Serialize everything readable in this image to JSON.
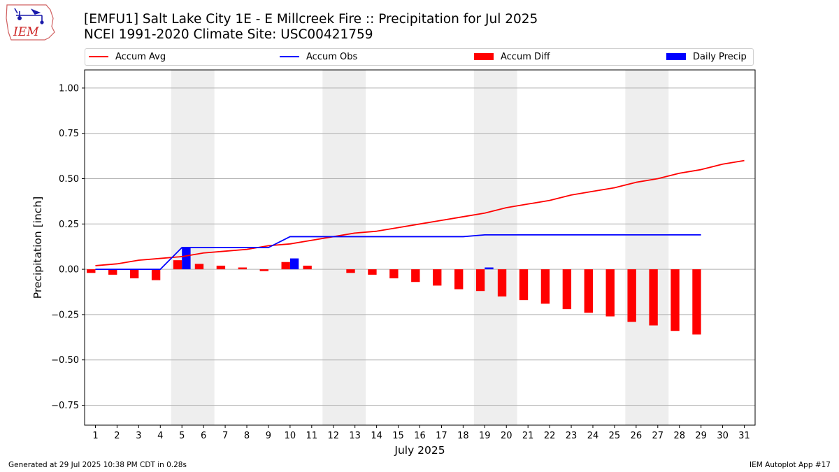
{
  "header": {
    "title_line1": "[EMFU1] Salt Lake City 1E - E Millcreek Fire :: Precipitation for Jul 2025",
    "title_line2": "NCEI 1991-2020 Climate Site: USC00421759"
  },
  "logo": {
    "text": "IEM",
    "icon": "iem-iowa-weather-logo-icon",
    "color": "#cc2222"
  },
  "footer": {
    "generated": "Generated at 29 Jul 2025 10:38 PM CDT in 0.28s",
    "app": "IEM Autoplot App #17"
  },
  "chart_data": {
    "type": "bar",
    "title": "[EMFU1] Salt Lake City 1E - E Millcreek Fire :: Precipitation for Jul 2025",
    "xlabel": "July 2025",
    "ylabel": "Precipitation [inch]",
    "x": [
      1,
      2,
      3,
      4,
      5,
      6,
      7,
      8,
      9,
      10,
      11,
      12,
      13,
      14,
      15,
      16,
      17,
      18,
      19,
      20,
      21,
      22,
      23,
      24,
      25,
      26,
      27,
      28,
      29,
      30,
      31
    ],
    "x_ticks": [
      "1",
      "2",
      "3",
      "4",
      "5",
      "6",
      "7",
      "8",
      "9",
      "10",
      "11",
      "12",
      "13",
      "14",
      "15",
      "16",
      "17",
      "18",
      "19",
      "20",
      "21",
      "22",
      "23",
      "24",
      "25",
      "26",
      "27",
      "28",
      "29",
      "30",
      "31"
    ],
    "ylim": [
      -0.86,
      1.1
    ],
    "y_ticks": [
      -0.75,
      -0.5,
      -0.25,
      0.0,
      0.25,
      0.5,
      0.75,
      1.0
    ],
    "y_tick_labels": [
      "−0.75",
      "−0.50",
      "−0.25",
      "0.00",
      "0.25",
      "0.50",
      "0.75",
      "1.00"
    ],
    "grid": true,
    "legend_position": "top",
    "weekend_shading": [
      [
        4.5,
        6.5
      ],
      [
        11.5,
        13.5
      ],
      [
        18.5,
        20.5
      ],
      [
        25.5,
        27.5
      ]
    ],
    "series": [
      {
        "name": "Accum Avg",
        "kind": "line",
        "color": "#ff0000",
        "x": [
          1,
          2,
          3,
          4,
          5,
          6,
          7,
          8,
          9,
          10,
          11,
          12,
          13,
          14,
          15,
          16,
          17,
          18,
          19,
          20,
          21,
          22,
          23,
          24,
          25,
          26,
          27,
          28,
          29,
          30,
          31
        ],
        "values": [
          0.02,
          0.03,
          0.05,
          0.06,
          0.07,
          0.09,
          0.1,
          0.11,
          0.13,
          0.14,
          0.16,
          0.18,
          0.2,
          0.21,
          0.23,
          0.25,
          0.27,
          0.29,
          0.31,
          0.34,
          0.36,
          0.38,
          0.41,
          0.43,
          0.45,
          0.48,
          0.5,
          0.53,
          0.55,
          0.58,
          0.6
        ]
      },
      {
        "name": "Accum Obs",
        "kind": "line",
        "color": "#0000ff",
        "x": [
          1,
          2,
          3,
          4,
          5,
          6,
          7,
          8,
          9,
          10,
          11,
          12,
          13,
          14,
          15,
          16,
          17,
          18,
          19,
          20,
          21,
          22,
          23,
          24,
          25,
          26,
          27,
          28,
          29
        ],
        "values": [
          0.0,
          0.0,
          0.0,
          0.0,
          0.12,
          0.12,
          0.12,
          0.12,
          0.12,
          0.18,
          0.18,
          0.18,
          0.18,
          0.18,
          0.18,
          0.18,
          0.18,
          0.18,
          0.19,
          0.19,
          0.19,
          0.19,
          0.19,
          0.19,
          0.19,
          0.19,
          0.19,
          0.19,
          0.19
        ]
      },
      {
        "name": "Accum Diff",
        "kind": "bar",
        "color": "#ff0000",
        "x": [
          1,
          2,
          3,
          4,
          5,
          6,
          7,
          8,
          9,
          10,
          11,
          12,
          13,
          14,
          15,
          16,
          17,
          18,
          19,
          20,
          21,
          22,
          23,
          24,
          25,
          26,
          27,
          28,
          29
        ],
        "values": [
          -0.02,
          -0.03,
          -0.05,
          -0.06,
          0.05,
          0.03,
          0.02,
          0.01,
          -0.01,
          0.04,
          0.02,
          0.0,
          -0.02,
          -0.03,
          -0.05,
          -0.07,
          -0.09,
          -0.11,
          -0.12,
          -0.15,
          -0.17,
          -0.19,
          -0.22,
          -0.24,
          -0.26,
          -0.29,
          -0.31,
          -0.34,
          -0.36
        ]
      },
      {
        "name": "Daily Precip",
        "kind": "bar",
        "color": "#0000ff",
        "x": [
          5,
          10,
          19
        ],
        "values": [
          0.12,
          0.06,
          0.01
        ]
      }
    ]
  }
}
